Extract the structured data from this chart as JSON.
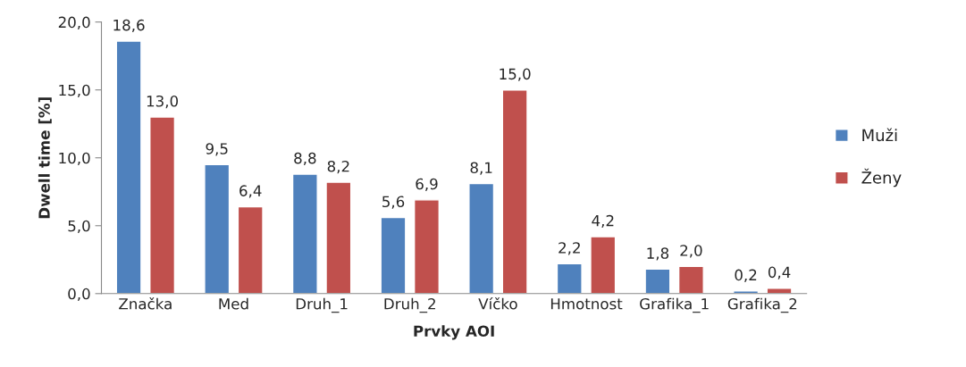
{
  "chart_data": {
    "type": "bar",
    "xlabel": "Prvky AOI",
    "ylabel": "Dwell time [%]",
    "categories": [
      "Značka",
      "Med",
      "Druh_1",
      "Druh_2",
      "Víčko",
      "Hmotnost",
      "Grafika_1",
      "Grafika_2"
    ],
    "series": [
      {
        "name": "Muži",
        "color": "#4f81bd",
        "values": [
          18.6,
          9.5,
          8.8,
          5.6,
          8.1,
          2.2,
          1.8,
          0.2
        ],
        "value_labels": [
          "18,6",
          "9,5",
          "8,8",
          "5,6",
          "8,1",
          "2,2",
          "1,8",
          "0,2"
        ]
      },
      {
        "name": "Ženy",
        "color": "#c0504d",
        "values": [
          13.0,
          6.4,
          8.2,
          6.9,
          15.0,
          4.2,
          2.0,
          0.4
        ],
        "value_labels": [
          "13,0",
          "6,4",
          "8,2",
          "6,9",
          "15,0",
          "4,2",
          "2,0",
          "0,4"
        ]
      }
    ],
    "ylim": [
      0,
      20
    ],
    "yticks": [
      {
        "value": 0,
        "label": "0,0"
      },
      {
        "value": 5,
        "label": "5,0"
      },
      {
        "value": 10,
        "label": "10,0"
      },
      {
        "value": 15,
        "label": "15,0"
      },
      {
        "value": 20,
        "label": "20,0"
      }
    ],
    "grid": false,
    "legend": "right"
  }
}
